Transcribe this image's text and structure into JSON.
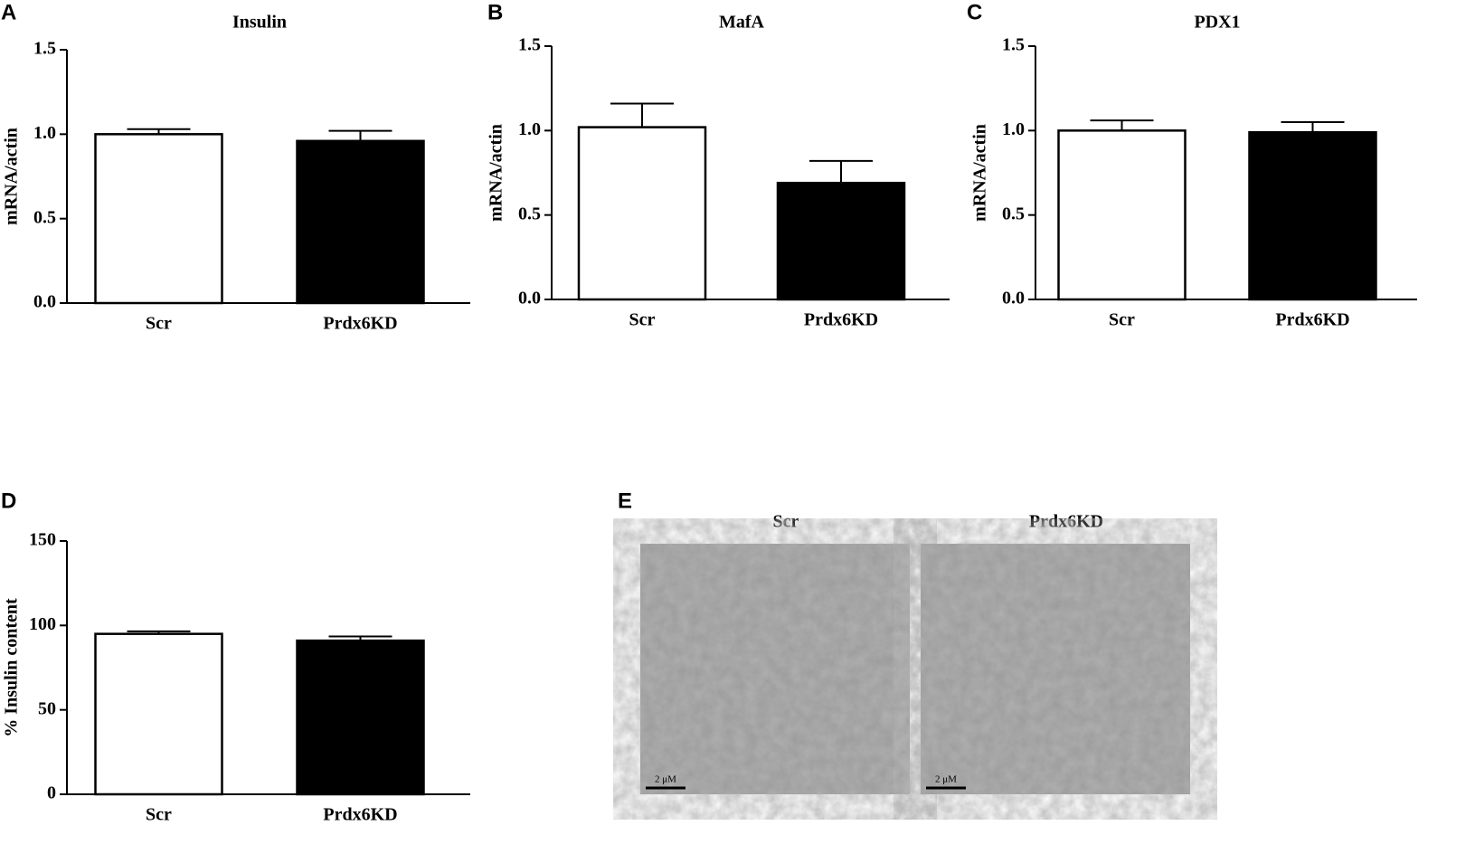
{
  "chart_data": [
    {
      "type": "bar",
      "panel": "A",
      "title": "Insulin",
      "y_label": "mRNA/actin",
      "categories": [
        "Scr",
        "Prdx6KD"
      ],
      "values": [
        1.0,
        0.96
      ],
      "errors": [
        0.03,
        0.06
      ],
      "colors": [
        "#ffffff",
        "#000000"
      ],
      "ylim": [
        0,
        1.5
      ],
      "yticks": [
        {
          "value": 0,
          "label": "0.0"
        },
        {
          "value": 0.5,
          "label": "0.5"
        },
        {
          "value": 1,
          "label": "1.0"
        },
        {
          "value": 1.5,
          "label": "1.5"
        }
      ]
    },
    {
      "type": "bar",
      "panel": "B",
      "title": "MafA",
      "y_label": "mRNA/actin",
      "categories": [
        "Scr",
        "Prdx6KD"
      ],
      "values": [
        1.02,
        0.69
      ],
      "errors": [
        0.14,
        0.13
      ],
      "colors": [
        "#ffffff",
        "#000000"
      ],
      "ylim": [
        0,
        1.5
      ],
      "yticks": [
        {
          "value": 0,
          "label": "0.0"
        },
        {
          "value": 0.5,
          "label": "0.5"
        },
        {
          "value": 1,
          "label": "1.0"
        },
        {
          "value": 1.5,
          "label": "1.5"
        }
      ]
    },
    {
      "type": "bar",
      "panel": "C",
      "title": "PDX1",
      "y_label": "mRNA/actin",
      "categories": [
        "Scr",
        "Prdx6KD"
      ],
      "values": [
        1.0,
        0.99
      ],
      "errors": [
        0.06,
        0.06
      ],
      "colors": [
        "#ffffff",
        "#000000"
      ],
      "ylim": [
        0,
        1.5
      ],
      "yticks": [
        {
          "value": 0,
          "label": "0.0"
        },
        {
          "value": 0.5,
          "label": "0.5"
        },
        {
          "value": 1,
          "label": "1.0"
        },
        {
          "value": 1.5,
          "label": "1.5"
        }
      ]
    },
    {
      "type": "bar",
      "panel": "D",
      "y_label": "% Insulin content",
      "categories": [
        "Scr",
        "Prdx6KD"
      ],
      "values": [
        95,
        91
      ],
      "errors": [
        1.5,
        2.5
      ],
      "colors": [
        "#ffffff",
        "#000000"
      ],
      "ylim": [
        0,
        150
      ],
      "yticks": [
        0,
        50,
        100,
        150
      ]
    }
  ],
  "micrographs": {
    "panel": "E",
    "images": [
      {
        "title": "Scr",
        "scale_label": "2 μM"
      },
      {
        "title": "Prdx6KD",
        "scale_label": "2 μM"
      }
    ]
  }
}
